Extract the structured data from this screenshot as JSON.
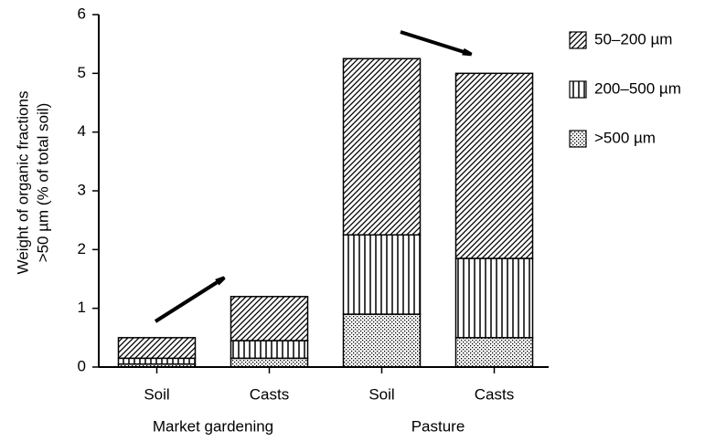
{
  "chart_data": {
    "type": "stacked_bar",
    "y_label": [
      "Weight of organic fractions",
      ">50 µm (% of total soil)"
    ],
    "categories": [
      "Soil",
      "Casts",
      "Soil",
      "Casts"
    ],
    "groups": [
      "Market gardening",
      "Pasture"
    ],
    "series": [
      {
        "name": ">500 µm",
        "color": "#000000",
        "pattern": "dots",
        "values": [
          0.05,
          0.15,
          0.9,
          0.5
        ]
      },
      {
        "name": "200–500 µm",
        "color": "#000000",
        "pattern": "vertical",
        "values": [
          0.1,
          0.3,
          1.35,
          1.35
        ]
      },
      {
        "name": "50–200 µm",
        "color": "#000000",
        "pattern": "diagonal",
        "values": [
          0.35,
          0.75,
          3.0,
          3.15
        ]
      }
    ],
    "ylim": [
      0,
      6
    ],
    "yticks": [
      0,
      1,
      2,
      3,
      4,
      5,
      6
    ],
    "grid": false,
    "legend": "right"
  }
}
